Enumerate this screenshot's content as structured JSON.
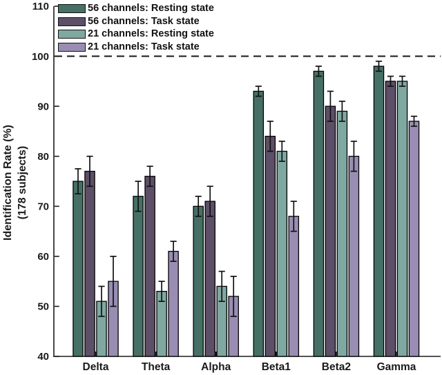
{
  "chart_data": {
    "type": "bar",
    "title": "",
    "categories": [
      "Delta",
      "Theta",
      "Alpha",
      "Beta1",
      "Beta2",
      "Gamma"
    ],
    "series": [
      {
        "name": "56 channels: Resting state",
        "color": "#467066",
        "values": [
          75,
          72,
          70,
          93,
          97,
          98
        ],
        "errors": [
          2.5,
          3,
          2,
          1,
          1,
          1
        ]
      },
      {
        "name": "56 channels: Task state",
        "color": "#5D4F67",
        "values": [
          77,
          76,
          71,
          84,
          90,
          95
        ],
        "errors": [
          3,
          2,
          3,
          3,
          3,
          1
        ]
      },
      {
        "name": "21 channels: Resting state",
        "color": "#7FA8A1",
        "values": [
          51,
          53,
          54,
          81,
          89,
          95
        ],
        "errors": [
          3,
          2,
          3,
          2,
          2,
          1
        ]
      },
      {
        "name": "21 channels: Task state",
        "color": "#9A8DB3",
        "values": [
          55,
          61,
          52,
          68,
          80,
          87
        ],
        "errors": [
          5,
          2,
          4,
          3,
          3,
          1
        ]
      }
    ],
    "ylabel_line1": "Identification Rate (%)",
    "ylabel_line2": "(178 subjects)",
    "xlabel": "",
    "ylim": [
      40,
      110
    ],
    "yticks": [
      40,
      50,
      60,
      70,
      80,
      90,
      100,
      110
    ],
    "grid": "off",
    "legend_position": "top-left",
    "reference_line": {
      "value": 100,
      "style": "dashed"
    },
    "colors": {
      "axis": "#1a1a1a",
      "bar_outline": "#000000",
      "error_bar": "#111111",
      "dashed_line": "#222222"
    }
  }
}
